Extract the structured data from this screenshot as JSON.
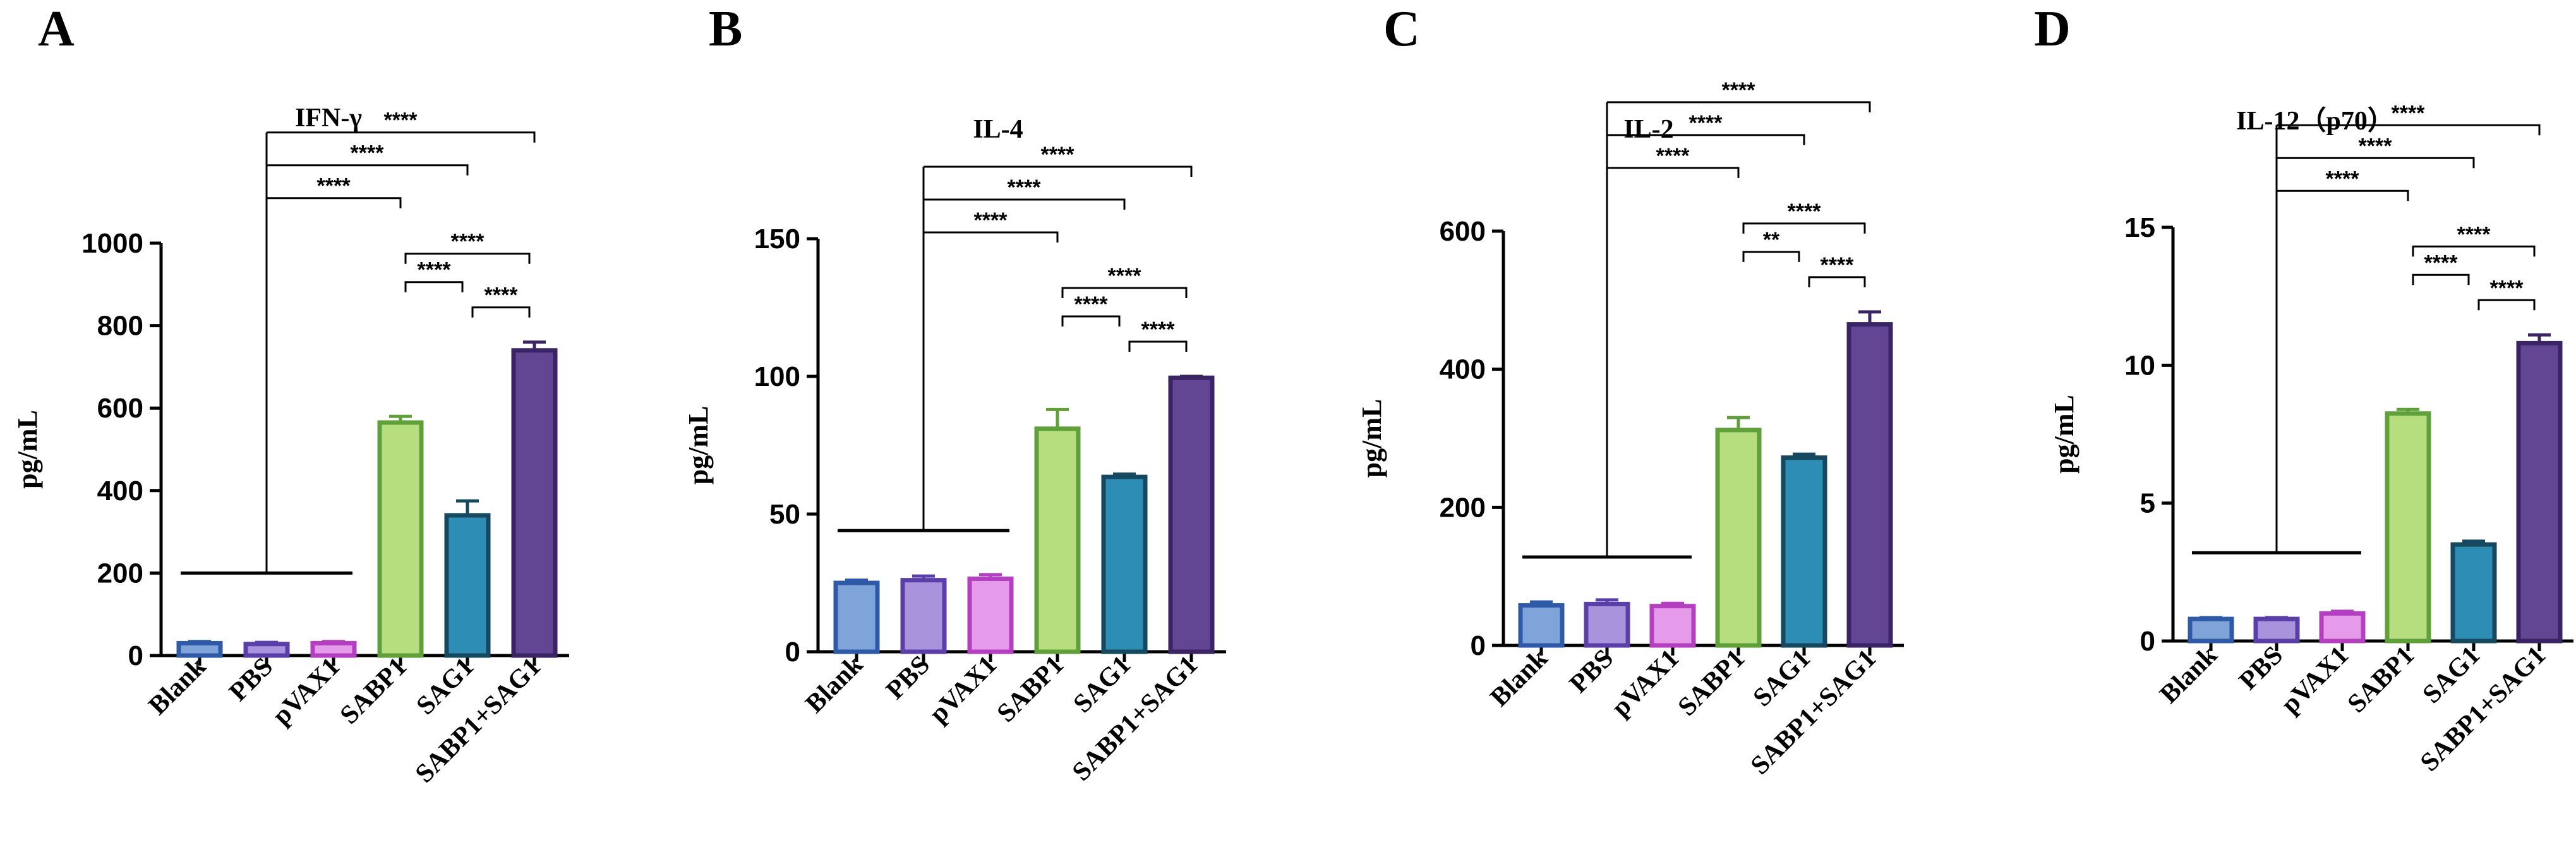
{
  "figure": {
    "colors": {
      "Blank": {
        "fill": "#7FA4D9",
        "stroke": "#2E5AA8"
      },
      "PBS": {
        "fill": "#A993DC",
        "stroke": "#5B3FA8"
      },
      "pVAX1": {
        "fill": "#E69BEA",
        "stroke": "#B43FC1"
      },
      "SABP1": {
        "fill": "#B7DE7E",
        "stroke": "#5FA03A"
      },
      "SAG1": {
        "fill": "#2E8DB4",
        "stroke": "#16495F"
      },
      "SABP1+SAG1": {
        "fill": "#634693",
        "stroke": "#3A2463"
      }
    }
  },
  "chart_data": [
    {
      "panel": "A",
      "type": "bar",
      "title": "IFN-γ",
      "ylabel": "pg/mL",
      "xlabel": "",
      "categories": [
        "Blank",
        "PBS",
        "pVAX1",
        "SABP1",
        "SAG1",
        "SABP1+SAG1"
      ],
      "values": [
        30,
        28,
        30,
        565,
        340,
        740
      ],
      "errors": [
        4,
        4,
        4,
        15,
        35,
        20
      ],
      "ylim": [
        0,
        1000
      ],
      "yticks": [
        0,
        200,
        400,
        600,
        800,
        1000
      ],
      "ytick_labels": [
        "0",
        "200",
        "400",
        "600",
        "800",
        "1000"
      ],
      "reference_line": 200,
      "brackets": [
        {
          "from": "SABP1",
          "to": "SAG1",
          "label": "****"
        },
        {
          "from": "SAG1",
          "to": "SABP1+SAG1",
          "label": "****"
        },
        {
          "from": "SABP1",
          "to": "SABP1+SAG1",
          "label": "****"
        },
        {
          "from": "group",
          "to": "SABP1",
          "label": "****"
        },
        {
          "from": "group",
          "to": "SAG1",
          "label": "****"
        },
        {
          "from": "group",
          "to": "SABP1+SAG1",
          "label": "****"
        }
      ]
    },
    {
      "panel": "B",
      "type": "bar",
      "title": "IL-4",
      "ylabel": "pg/mL",
      "xlabel": "",
      "categories": [
        "Blank",
        "PBS",
        "pVAX1",
        "SABP1",
        "SAG1",
        "SABP1+SAG1"
      ],
      "values": [
        25,
        26,
        26.5,
        81,
        63.5,
        99.5
      ],
      "errors": [
        1,
        1.5,
        1.5,
        7,
        1,
        0.5
      ],
      "ylim": [
        0,
        150
      ],
      "yticks": [
        0,
        50,
        100,
        150
      ],
      "ytick_labels": [
        "0",
        "50",
        "100",
        "150"
      ],
      "reference_line": 44,
      "brackets": [
        {
          "from": "SABP1",
          "to": "SAG1",
          "label": "****"
        },
        {
          "from": "SAG1",
          "to": "SABP1+SAG1",
          "label": "****"
        },
        {
          "from": "SABP1",
          "to": "SABP1+SAG1",
          "label": "****"
        },
        {
          "from": "group",
          "to": "SABP1",
          "label": "****"
        },
        {
          "from": "group",
          "to": "SAG1",
          "label": "****"
        },
        {
          "from": "group",
          "to": "SABP1+SAG1",
          "label": "****"
        }
      ]
    },
    {
      "panel": "C",
      "type": "bar",
      "title": "IL-2",
      "ylabel": "pg/mL",
      "xlabel": "",
      "categories": [
        "Blank",
        "PBS",
        "pVAX1",
        "SABP1",
        "SAG1",
        "SABP1+SAG1"
      ],
      "values": [
        58,
        60,
        57,
        312,
        272,
        465
      ],
      "errors": [
        5,
        6,
        4,
        18,
        5,
        18
      ],
      "ylim": [
        0,
        600
      ],
      "yticks": [
        0,
        200,
        400,
        600
      ],
      "ytick_labels": [
        "0",
        "200",
        "400",
        "600"
      ],
      "reference_line": 128,
      "brackets": [
        {
          "from": "SABP1",
          "to": "SAG1",
          "label": "**"
        },
        {
          "from": "SAG1",
          "to": "SABP1+SAG1",
          "label": "****"
        },
        {
          "from": "SABP1",
          "to": "SABP1+SAG1",
          "label": "****"
        },
        {
          "from": "group",
          "to": "SABP1",
          "label": "****"
        },
        {
          "from": "group",
          "to": "SAG1",
          "label": "****"
        },
        {
          "from": "group",
          "to": "SABP1+SAG1",
          "label": "****"
        }
      ]
    },
    {
      "panel": "D",
      "type": "bar",
      "title": "IL-12（p70）",
      "ylabel": "pg/mL",
      "xlabel": "",
      "categories": [
        "Blank",
        "PBS",
        "pVAX1",
        "SABP1",
        "SAG1",
        "SABP1+SAG1"
      ],
      "values": [
        0.8,
        0.8,
        1.0,
        8.25,
        3.5,
        10.8
      ],
      "errors": [
        0.05,
        0.05,
        0.08,
        0.15,
        0.12,
        0.3
      ],
      "ylim": [
        0,
        15
      ],
      "yticks": [
        0,
        5,
        10,
        15
      ],
      "ytick_labels": [
        "0",
        "5",
        "10",
        "15"
      ],
      "reference_line": 3.2,
      "brackets": [
        {
          "from": "SABP1",
          "to": "SAG1",
          "label": "****"
        },
        {
          "from": "SAG1",
          "to": "SABP1+SAG1",
          "label": "****"
        },
        {
          "from": "SABP1",
          "to": "SABP1+SAG1",
          "label": "****"
        },
        {
          "from": "group",
          "to": "SABP1",
          "label": "****"
        },
        {
          "from": "group",
          "to": "SAG1",
          "label": "****"
        },
        {
          "from": "group",
          "to": "SABP1+SAG1",
          "label": "****"
        }
      ]
    }
  ]
}
